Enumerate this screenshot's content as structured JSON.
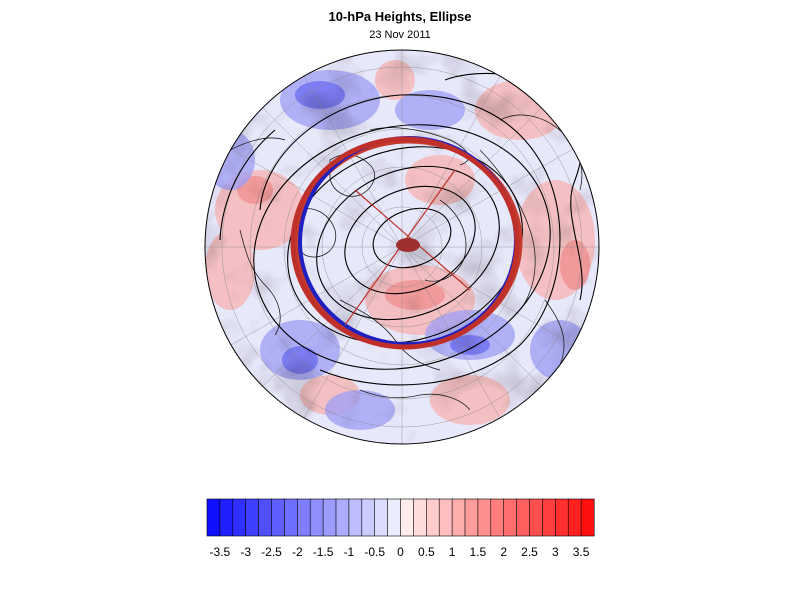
{
  "header": {
    "title": "10-hPa Heights, Ellipse",
    "date": "23 Nov 2011"
  },
  "colorbar": {
    "tick_labels": [
      "-3.5",
      "-3",
      "-2.5",
      "-2",
      "-1.5",
      "-1",
      "-0.5",
      "0",
      "0.5",
      "1",
      "1.5",
      "2",
      "2.5",
      "3",
      "3.5"
    ],
    "colors": {
      "min": "#1010ff",
      "mid": "#ffffff",
      "max": "#ff1010"
    }
  },
  "map": {
    "projection": "polar orthographic, Northern Hemisphere",
    "colors": {
      "contour": "#000000",
      "ellipse_outer_red": "#c0302a",
      "ellipse_blue": "#2020c0",
      "ellipse_inner_red": "#c43a2e",
      "pole_mark": "#a03030"
    }
  }
}
